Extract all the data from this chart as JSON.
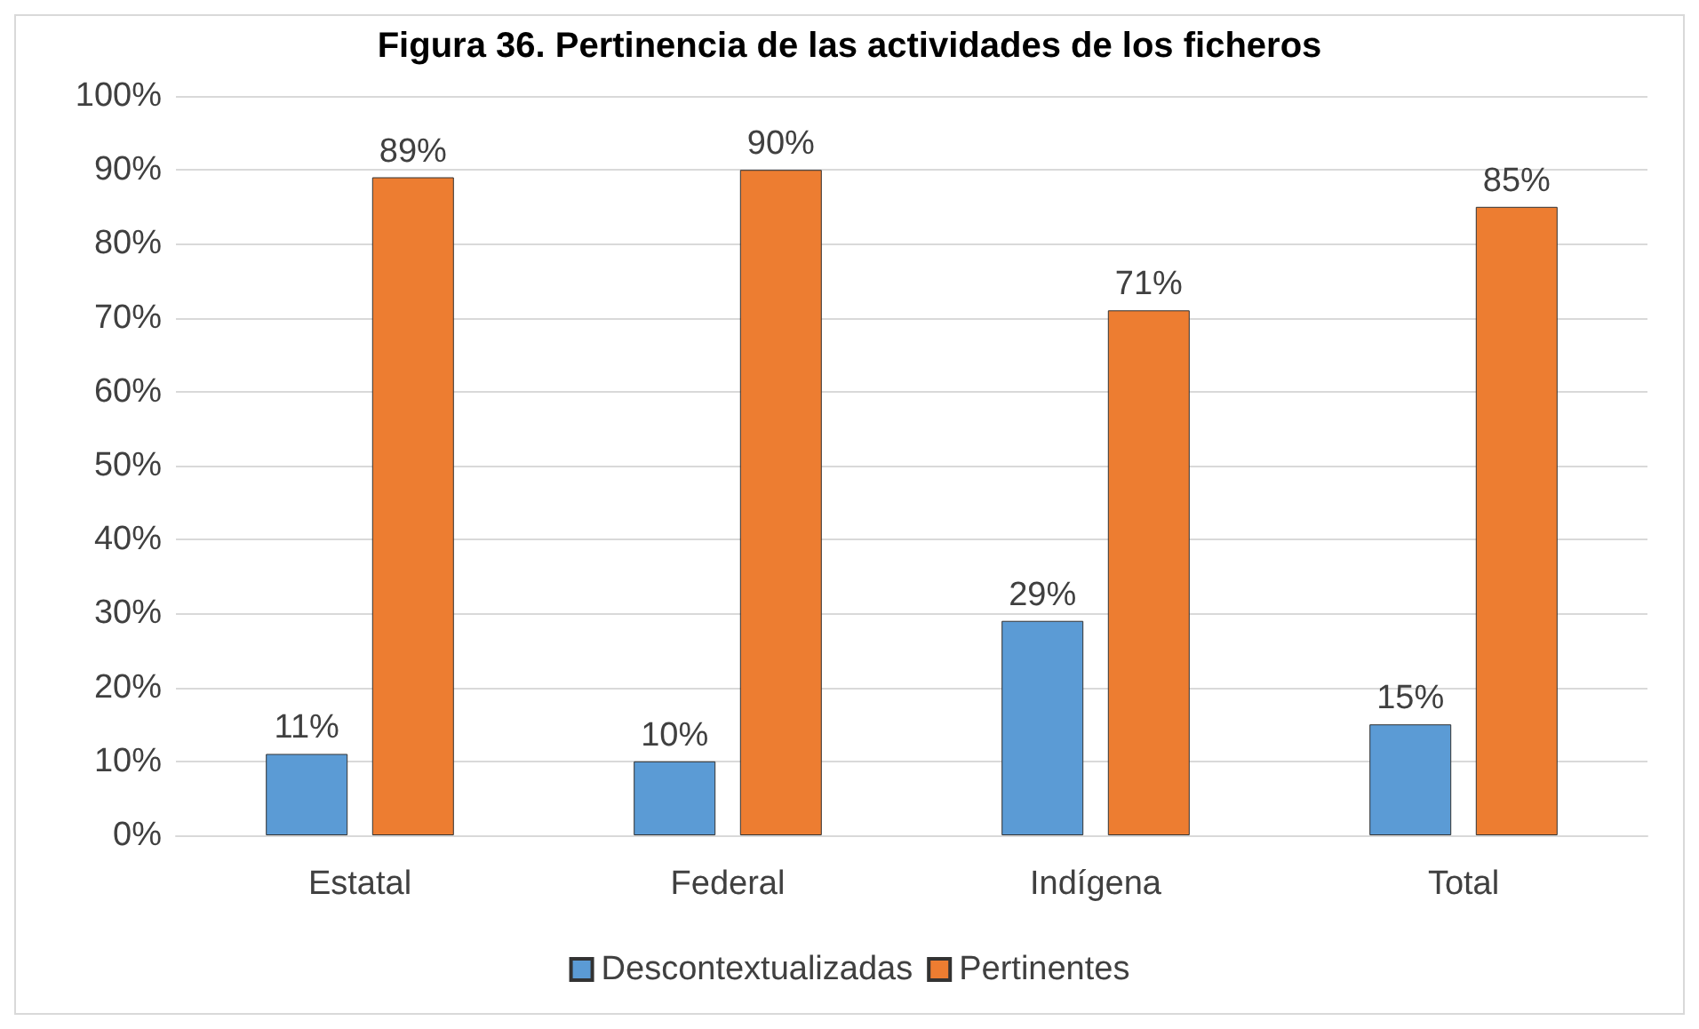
{
  "chart_data": {
    "type": "bar",
    "title": "Figura 36. Pertinencia de las actividades de los ficheros",
    "categories": [
      "Estatal",
      "Federal",
      "Indígena",
      "Total"
    ],
    "series": [
      {
        "name": "Descontextualizadas",
        "color": "#5b9bd5",
        "values": [
          11,
          10,
          29,
          15
        ],
        "value_labels": [
          "11%",
          "10%",
          "29%",
          "15%"
        ]
      },
      {
        "name": "Pertinentes",
        "color": "#ed7d31",
        "values": [
          89,
          90,
          71,
          85
        ],
        "value_labels": [
          "89%",
          "90%",
          "71%",
          "85%"
        ]
      }
    ],
    "ylim": [
      0,
      100
    ],
    "yticks": [
      {
        "value": 0,
        "label": "0%"
      },
      {
        "value": 10,
        "label": "10%"
      },
      {
        "value": 20,
        "label": "20%"
      },
      {
        "value": 30,
        "label": "30%"
      },
      {
        "value": 40,
        "label": "40%"
      },
      {
        "value": 50,
        "label": "50%"
      },
      {
        "value": 60,
        "label": "60%"
      },
      {
        "value": 70,
        "label": "70%"
      },
      {
        "value": 80,
        "label": "80%"
      },
      {
        "value": 90,
        "label": "90%"
      },
      {
        "value": 100,
        "label": "100%"
      }
    ],
    "grid": "y",
    "legend": "bottom"
  }
}
